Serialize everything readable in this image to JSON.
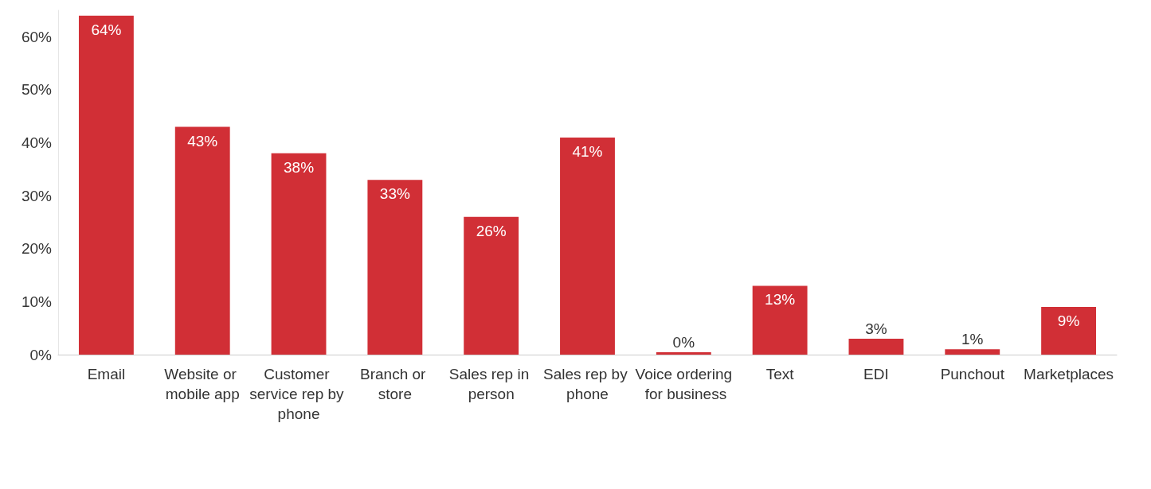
{
  "chart_data": {
    "type": "bar",
    "categories": [
      "Email",
      "Website or mobile app",
      "Customer service rep by phone",
      "Branch or store",
      "Sales rep in person",
      "Sales rep by phone",
      "Voice ordering for business",
      "Text",
      "EDI",
      "Punchout",
      "Marketplaces"
    ],
    "values": [
      64,
      43,
      38,
      33,
      26,
      41,
      0,
      13,
      3,
      1,
      9
    ],
    "value_labels": [
      "64%",
      "43%",
      "38%",
      "33%",
      "26%",
      "41%",
      "0%",
      "13%",
      "3%",
      "1%",
      "9%"
    ],
    "color": "#d12f36",
    "ylim": [
      0,
      65
    ],
    "yticks": [
      {
        "value": 0,
        "label": "0%"
      },
      {
        "value": 10,
        "label": "10%"
      },
      {
        "value": 20,
        "label": "20%"
      },
      {
        "value": 30,
        "label": "30%"
      },
      {
        "value": 40,
        "label": "40%"
      },
      {
        "value": 50,
        "label": "50%"
      },
      {
        "value": 60,
        "label": "60%"
      }
    ],
    "grid": false
  }
}
